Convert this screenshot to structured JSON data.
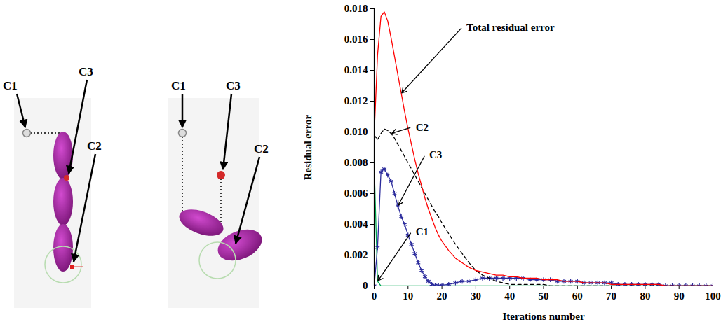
{
  "chart_data": {
    "type": "line",
    "x_label": "Iterations number",
    "y_label": "Residual error",
    "x": [
      0,
      1,
      2,
      3,
      4,
      5,
      6,
      7,
      8,
      9,
      10,
      11,
      12,
      13,
      14,
      15,
      16,
      17,
      18,
      19,
      20,
      22,
      24,
      26,
      28,
      30,
      32,
      34,
      36,
      38,
      40,
      42,
      44,
      46,
      48,
      50,
      52,
      54,
      56,
      58,
      60,
      62,
      64,
      66,
      68,
      70,
      72,
      74,
      76,
      78,
      80,
      82,
      84,
      86,
      88,
      90,
      92,
      94,
      96,
      98,
      100
    ],
    "xlim": [
      0,
      100
    ],
    "xticks": [
      0,
      10,
      20,
      30,
      40,
      50,
      60,
      70,
      80,
      90,
      100
    ],
    "ylim": [
      0,
      0.018
    ],
    "yticks": [
      0,
      0.002,
      0.004,
      0.006,
      0.008,
      {
        "value": 0.01,
        "label": "0.010"
      },
      0.012,
      0.014,
      0.016,
      0.018
    ],
    "series": [
      {
        "name": "Total residual error",
        "color": "#ff0000",
        "line_style": "solid",
        "values": [
          0.0098,
          0.015,
          0.0175,
          0.0178,
          0.0172,
          0.0161,
          0.0149,
          0.0137,
          0.0125,
          0.0113,
          0.0102,
          0.0092,
          0.0082,
          0.0073,
          0.0065,
          0.0057,
          0.005,
          0.0044,
          0.0038,
          0.0033,
          0.0029,
          0.0023,
          0.0018,
          0.0015,
          0.0012,
          0.001,
          0.0009,
          0.0008,
          0.0007,
          0.0007,
          0.0006,
          0.0006,
          0.0005,
          0.0005,
          0.0005,
          0.0004,
          0.0004,
          0.0004,
          0.0003,
          0.0003,
          0.0003,
          0.0002,
          0.0002,
          0.0002,
          0.0002,
          0.0001,
          0.0001,
          0.0001,
          0.0001,
          0.0001,
          0.0001,
          0.0001,
          0.0001,
          0,
          0,
          0,
          0,
          0,
          0,
          0,
          0
        ]
      },
      {
        "name": "C2",
        "color": "#000000",
        "line_style": "dashed",
        "values": [
          0.0098,
          0.0095,
          0.0099,
          0.0102,
          0.0101,
          0.0099,
          0.0096,
          0.0092,
          0.0088,
          0.0084,
          0.008,
          0.0076,
          0.0072,
          0.0068,
          0.0064,
          0.006,
          0.0056,
          0.0052,
          0.0048,
          0.0045,
          0.0041,
          0.0034,
          0.0027,
          0.0021,
          0.0015,
          0.001,
          0.0007,
          0.0005,
          0.0003,
          0.0002,
          0.0001,
          0.0001,
          0.0001,
          0.0001,
          0.0001,
          0.0001,
          0,
          0,
          0,
          0,
          0,
          0,
          0,
          0,
          0,
          0,
          0,
          0,
          0,
          0,
          0,
          0,
          0,
          0,
          0,
          0,
          0,
          0,
          0,
          0,
          0
        ]
      },
      {
        "name": "C3",
        "color": "#2b2b9c",
        "line_style": "solid",
        "marker": "asterisk",
        "values": [
          0,
          0.0025,
          0.0074,
          0.0076,
          0.0072,
          0.0068,
          0.006,
          0.0052,
          0.0045,
          0.004,
          0.0033,
          0.0027,
          0.0021,
          0.0015,
          0.001,
          0.0006,
          0.0003,
          0.0001,
          3e-05,
          2e-05,
          5e-05,
          0.0001,
          0.0002,
          0.0003,
          0.0003,
          0.0004,
          0.0005,
          0.0005,
          0.0005,
          0.0005,
          0.0005,
          0.0005,
          0.0005,
          0.0004,
          0.0004,
          0.0004,
          0.0004,
          0.0003,
          0.0003,
          0.0003,
          0.0003,
          0.0002,
          0.0002,
          0.0002,
          0.0002,
          0.0002,
          0.0001,
          0.0001,
          0.0001,
          0.0001,
          0.0001,
          0.0001,
          0.0001,
          0,
          0,
          0,
          0,
          0,
          0,
          0,
          0
        ]
      },
      {
        "name": "C1",
        "color": "#00a651",
        "line_style": "solid",
        "values": [
          0.008,
          0.0003,
          0,
          0,
          0,
          0,
          0,
          0,
          0,
          0,
          0,
          0,
          0,
          0,
          0,
          0,
          0,
          0,
          0,
          0,
          0,
          0,
          0,
          0,
          0,
          0,
          0,
          0,
          0,
          0,
          0,
          0,
          0,
          0,
          0,
          0,
          0,
          0,
          0,
          0,
          0,
          0,
          0,
          0,
          0,
          0,
          0,
          0,
          0,
          0,
          0,
          0,
          0,
          0,
          0,
          0,
          0,
          0,
          0,
          0,
          0
        ]
      }
    ]
  },
  "diagram": {
    "panels": [
      {
        "labels": [
          "C1",
          "C3",
          "C2"
        ]
      },
      {
        "labels": [
          "C1",
          "C3",
          "C2"
        ]
      }
    ]
  }
}
